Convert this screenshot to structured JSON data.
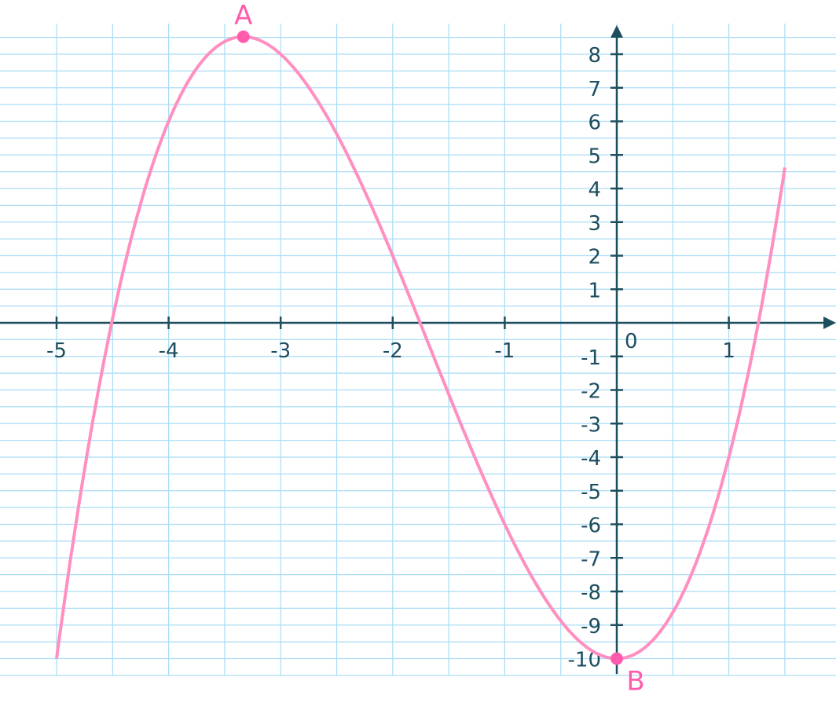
{
  "chart_data": {
    "type": "line",
    "title": "",
    "xlabel": "",
    "ylabel": "",
    "function": "y = x^3 + 5x^2 - 10",
    "coefficients": {
      "a": 1,
      "b": 5,
      "c": 0,
      "d": -10
    },
    "domain": [
      -5,
      1.5
    ],
    "xlim": [
      -5.5,
      1.9
    ],
    "ylim": [
      -10.5,
      9.4
    ],
    "grid": true,
    "grid_step": {
      "x": 0.5,
      "y": 0.5
    },
    "x_ticks": [
      -5,
      -4,
      -3,
      -2,
      -1,
      1
    ],
    "x_tick_labels": [
      "-5",
      "-4",
      "-3",
      "-2",
      "-1",
      "1"
    ],
    "y_ticks": [
      8,
      7,
      6,
      5,
      4,
      3,
      2,
      1,
      -1,
      -2,
      -3,
      -4,
      -5,
      -6,
      -7,
      -8,
      -9,
      -10
    ],
    "y_tick_labels": [
      "8",
      "7",
      "6",
      "5",
      "4",
      "3",
      "2",
      "1",
      "-1",
      "-2",
      "-3",
      "-4",
      "-5",
      "-6",
      "-7",
      "-8",
      "-9",
      "-10"
    ],
    "origin_label": "0",
    "points": [
      {
        "label": "A",
        "x": -3.333,
        "y": 8.52
      },
      {
        "label": "B",
        "x": 0,
        "y": -10
      }
    ],
    "colors": {
      "curve": "#ff8fc0",
      "points": "#ff5cad",
      "axes": "#1d4e5e",
      "grid": "#a9dcf5"
    }
  }
}
